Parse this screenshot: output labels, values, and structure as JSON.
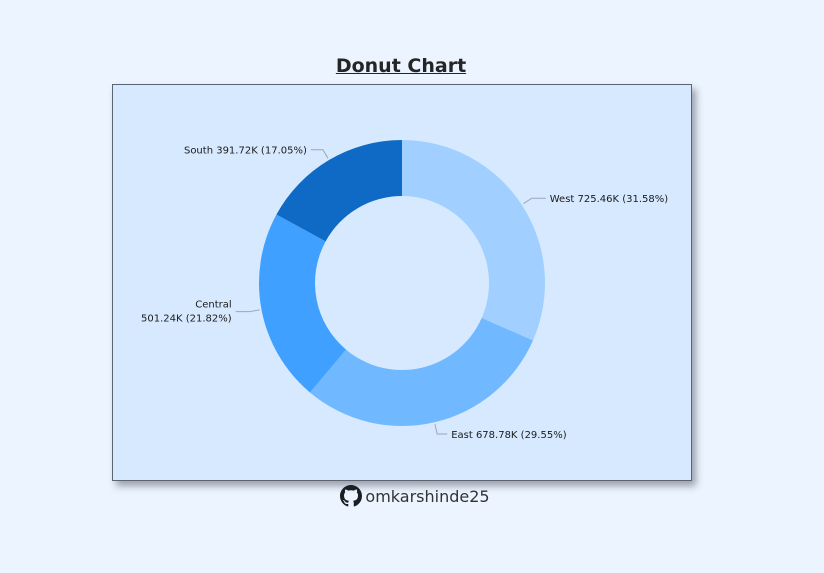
{
  "page": {
    "background": "#ebf4ff"
  },
  "chart_data": {
    "type": "pie",
    "variant": "donut",
    "title": "Donut Chart",
    "categories": [
      "West",
      "East",
      "Central",
      "South"
    ],
    "values": [
      725.46,
      678.78,
      501.24,
      391.72
    ],
    "units": "K",
    "percentages": [
      31.58,
      29.55,
      21.82,
      17.05
    ],
    "labels": [
      "West 725.46K (31.58%)",
      "East 678.78K (29.55%)",
      [
        "Central",
        "501.24K (21.82%)"
      ],
      "South 391.72K (17.05%)"
    ],
    "colors": [
      "#a1cfff",
      "#70b8ff",
      "#40a0ff",
      "#0e6ac4"
    ],
    "start_angle": "top, clockwise",
    "legend": "none",
    "plot_background": "#d6e9ff"
  },
  "footer": {
    "icon": "github-icon",
    "handle": "omkarshinde25"
  }
}
